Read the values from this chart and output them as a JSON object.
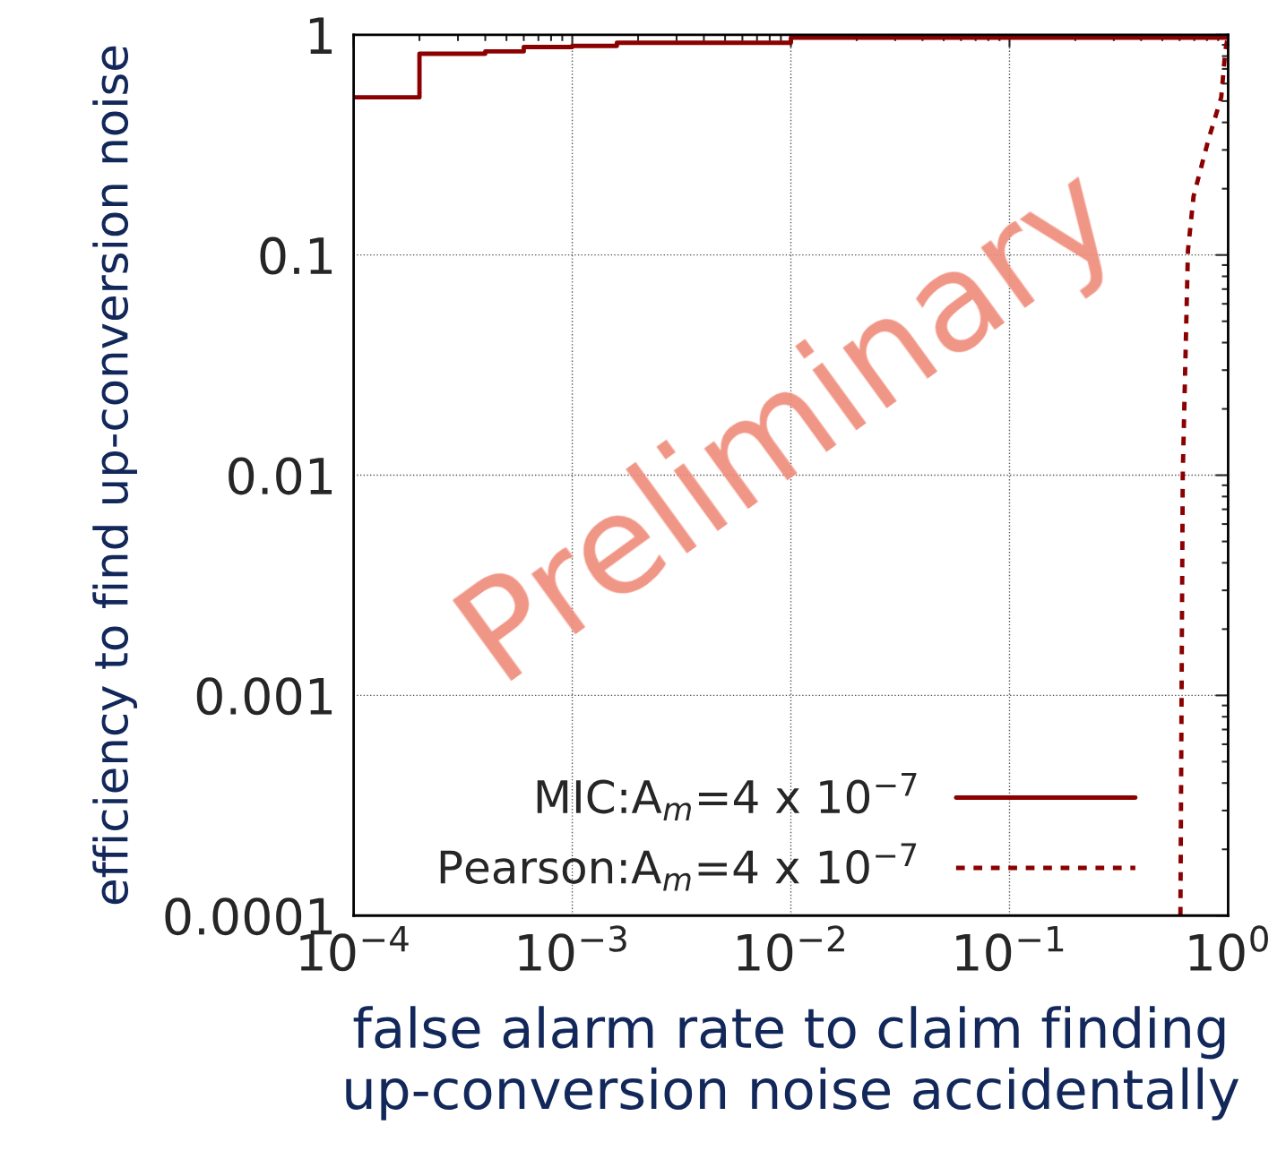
{
  "chart_data": {
    "type": "line",
    "xlabel": "false alarm rate to claim finding up-conversion noise accidentally",
    "ylabel": "efficiency to find up-conversion noise",
    "log": "xy",
    "xlim": [
      0.0001,
      1
    ],
    "ylim": [
      0.0001,
      1
    ],
    "xticks": [
      {
        "value": 0.0001,
        "label": "10$^{−4}$"
      },
      {
        "value": 0.001,
        "label": "10$^{−3}$"
      },
      {
        "value": 0.01,
        "label": "10$^{−2}$"
      },
      {
        "value": 0.1,
        "label": "10$^{−1}$"
      },
      {
        "value": 1,
        "label": "10$^{0}$"
      }
    ],
    "yticks": [
      0.0001,
      0.001,
      0.01,
      0.1,
      1
    ],
    "grid": true,
    "legend": "bottom right",
    "annotations": [
      "Preliminary"
    ],
    "series": [
      {
        "name": "MIC:A$_{m}$=4 x 10$^{−7}$",
        "type": "step",
        "line_style": "solid",
        "color": "#8b0000",
        "x": [
          0.0001,
          0.0002,
          0.0004,
          0.0006,
          0.001,
          0.0016,
          0.01,
          1
        ],
        "values": [
          0.52,
          0.82,
          0.84,
          0.88,
          0.89,
          0.92,
          0.97,
          1.0
        ]
      },
      {
        "name": "Pearson:A$_{m}$=4 x 10$^{−7}$",
        "line_style": "dashed",
        "color": "#8b0000",
        "x": [
          0.605,
          0.62,
          0.655,
          0.695,
          0.81,
          0.93,
          0.97,
          1.0
        ],
        "values": [
          0.0001,
          0.01,
          0.105,
          0.185,
          0.33,
          0.52,
          0.84,
          1.0
        ]
      }
    ]
  }
}
